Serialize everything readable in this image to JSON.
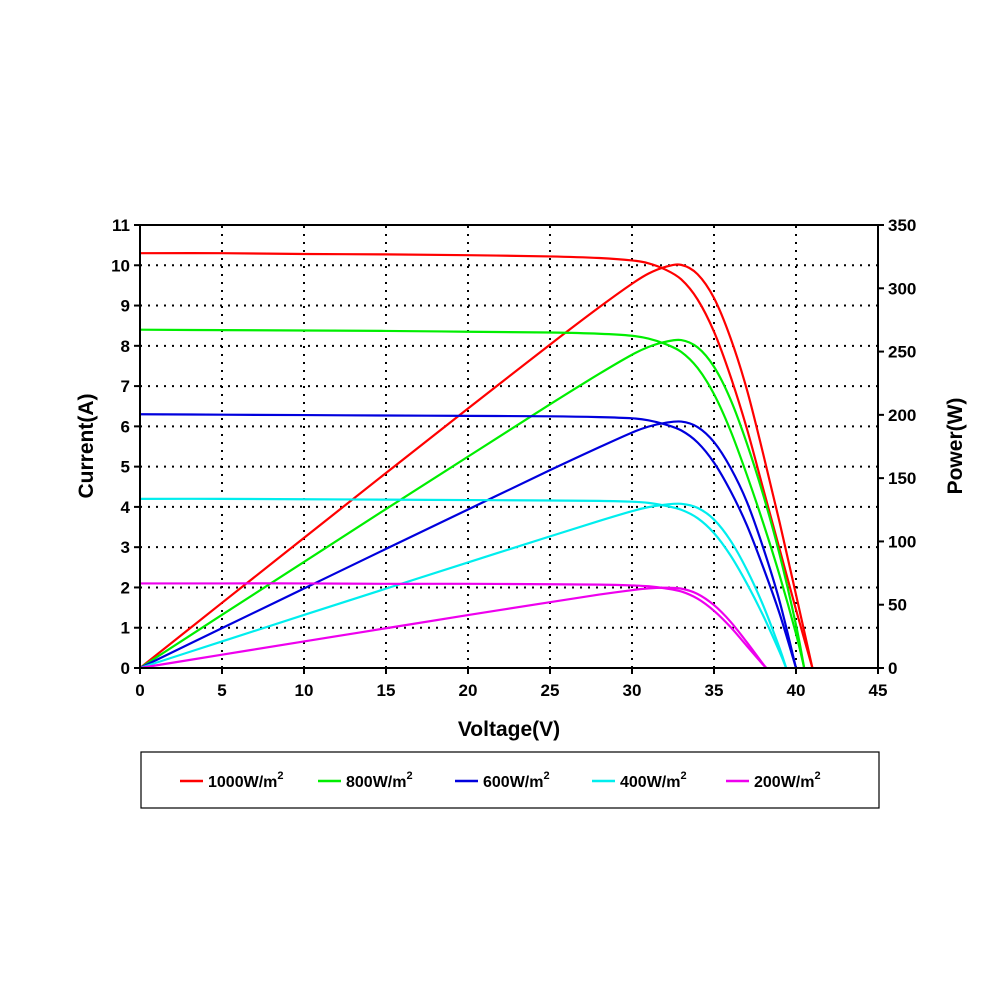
{
  "chart_data": {
    "type": "line",
    "xlabel": "Voltage(V)",
    "ylabel": "Current(A)",
    "y2label": "Power(W)",
    "xlim": [
      0,
      45
    ],
    "ylim": [
      0,
      11
    ],
    "y2lim": [
      0,
      350
    ],
    "xticks": [
      0,
      5,
      10,
      15,
      20,
      25,
      30,
      35,
      40,
      45
    ],
    "yticks": [
      0,
      1,
      2,
      3,
      4,
      5,
      6,
      7,
      8,
      9,
      10,
      11
    ],
    "y2ticks": [
      0,
      50,
      100,
      150,
      200,
      250,
      300,
      350
    ],
    "grid": true,
    "legend_position": "bottom",
    "series": [
      {
        "name": "1000W/m",
        "sup": "2",
        "color": "#ff0000",
        "voltage": [
          0,
          5,
          10,
          15,
          20,
          25,
          28,
          30,
          31,
          32,
          33,
          34,
          35,
          36,
          37,
          38,
          39,
          40,
          41
        ],
        "current": [
          10.3,
          10.3,
          10.28,
          10.27,
          10.25,
          10.22,
          10.18,
          10.12,
          10.05,
          9.9,
          9.65,
          9.15,
          8.35,
          7.25,
          5.95,
          4.45,
          2.95,
          1.45,
          0
        ],
        "power": [
          0,
          51.5,
          102.8,
          154.1,
          205,
          255.5,
          285,
          303.6,
          311.6,
          316.8,
          318.5,
          311.1,
          292.3,
          261,
          220.2,
          169.1,
          115.1,
          58,
          0
        ]
      },
      {
        "name": "800W/m",
        "sup": "2",
        "color": "#00ee00",
        "voltage": [
          0,
          5,
          10,
          15,
          20,
          25,
          28,
          30,
          31,
          32,
          33,
          34,
          35,
          36,
          37,
          38,
          39,
          40,
          40.5
        ],
        "current": [
          8.4,
          8.39,
          8.38,
          8.37,
          8.35,
          8.33,
          8.3,
          8.25,
          8.18,
          8.05,
          7.85,
          7.45,
          6.8,
          5.9,
          4.8,
          3.6,
          2.3,
          0.85,
          0
        ],
        "power": [
          0,
          42,
          83.8,
          125.6,
          167,
          208.3,
          232.4,
          247.5,
          253.6,
          257.6,
          259.1,
          253.3,
          238,
          212.4,
          177.6,
          136.8,
          89.7,
          34,
          0
        ]
      },
      {
        "name": "600W/m",
        "sup": "2",
        "color": "#0000dd",
        "voltage": [
          0,
          5,
          10,
          15,
          20,
          25,
          28,
          30,
          31,
          32,
          33,
          34,
          35,
          36,
          37,
          38,
          39,
          40
        ],
        "current": [
          6.3,
          6.29,
          6.28,
          6.27,
          6.26,
          6.25,
          6.23,
          6.2,
          6.15,
          6.05,
          5.9,
          5.6,
          5.1,
          4.4,
          3.55,
          2.5,
          1.35,
          0
        ],
        "power": [
          0,
          31.5,
          62.8,
          94.1,
          125.2,
          156.3,
          174.4,
          186,
          190.7,
          193.6,
          194.7,
          190.4,
          178.5,
          158.4,
          131.4,
          95,
          52.7,
          0
        ]
      },
      {
        "name": "400W/m",
        "sup": "2",
        "color": "#00eeee",
        "voltage": [
          0,
          5,
          10,
          15,
          20,
          25,
          28,
          30,
          31,
          32,
          33,
          34,
          35,
          36,
          37,
          38,
          39,
          39.4
        ],
        "current": [
          4.2,
          4.2,
          4.19,
          4.18,
          4.17,
          4.16,
          4.15,
          4.13,
          4.1,
          4.03,
          3.93,
          3.72,
          3.35,
          2.8,
          2.1,
          1.3,
          0.4,
          0
        ],
        "power": [
          0,
          21,
          41.9,
          62.7,
          83.4,
          104,
          116.2,
          123.9,
          127.1,
          129,
          129.7,
          126.5,
          117.3,
          100.8,
          77.7,
          49.4,
          15.6,
          0
        ]
      },
      {
        "name": "200W/m",
        "sup": "2",
        "color": "#ee00ee",
        "voltage": [
          0,
          5,
          10,
          15,
          20,
          25,
          28,
          30,
          31,
          32,
          33,
          34,
          35,
          36,
          37,
          38,
          38.2
        ],
        "current": [
          2.1,
          2.1,
          2.1,
          2.09,
          2.09,
          2.08,
          2.07,
          2.05,
          2.03,
          1.98,
          1.9,
          1.72,
          1.42,
          1.02,
          0.55,
          0.08,
          0
        ],
        "power": [
          0,
          10.5,
          21,
          31.4,
          41.8,
          52,
          58,
          61.5,
          62.9,
          63.4,
          62.7,
          58.5,
          49.7,
          36.7,
          20.4,
          3,
          0
        ]
      }
    ]
  }
}
